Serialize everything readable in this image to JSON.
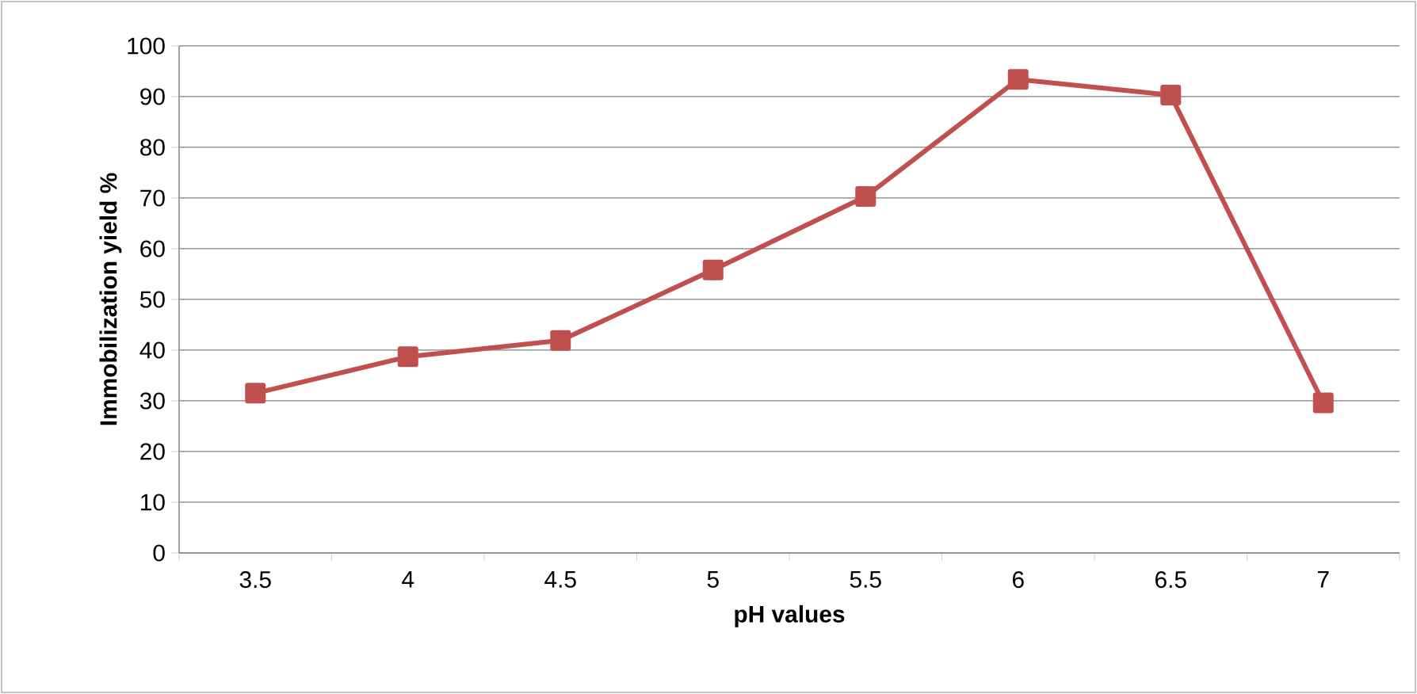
{
  "chart_data": {
    "type": "line",
    "xlabel": "pH values",
    "ylabel": "Immobilization yield %",
    "categories": [
      "3.5",
      "4",
      "4.5",
      "5",
      "5.5",
      "6",
      "6.5",
      "7"
    ],
    "series": [
      {
        "color": "#c0504d",
        "values": [
          31.5,
          38.7,
          41.9,
          55.8,
          70.3,
          93.4,
          90.3,
          29.6
        ]
      }
    ],
    "ylim": [
      0,
      100
    ],
    "yticks": [
      0,
      10,
      20,
      30,
      40,
      50,
      60,
      70,
      80,
      90,
      100
    ],
    "grid": "y",
    "marker": "square",
    "line_style": "solid"
  }
}
